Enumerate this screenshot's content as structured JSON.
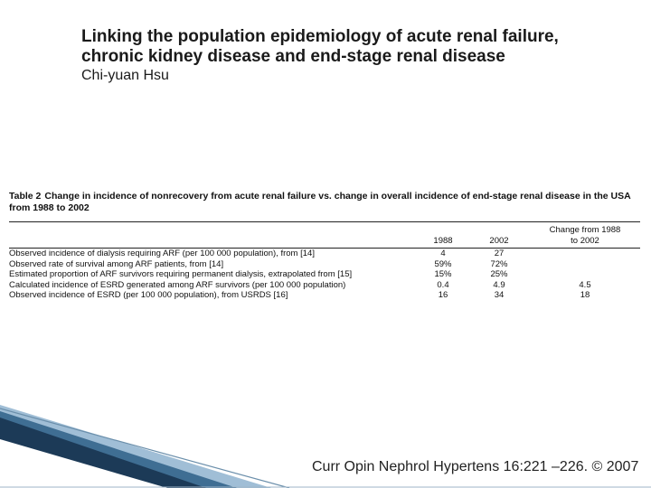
{
  "paper": {
    "title_line1": "Linking the population epidemiology of acute renal failure,",
    "title_line2": "chronic kidney disease and end-stage renal disease",
    "author": "Chi-yuan Hsu"
  },
  "table": {
    "label": "Table 2",
    "caption": "Change in incidence of nonrecovery from acute renal failure vs. change in overall incidence of end-stage renal disease in the USA from 1988 to 2002",
    "headers": {
      "col1": "1988",
      "col2": "2002",
      "col3_line1": "Change from 1988",
      "col3_line2": "to 2002"
    },
    "rows": [
      {
        "label": "Observed incidence of dialysis requiring ARF (per 100 000 population), from [14]",
        "y1988": "4",
        "y2002": "27",
        "change": ""
      },
      {
        "label": "Observed rate of survival among ARF patients, from [14]",
        "y1988": "59%",
        "y2002": "72%",
        "change": ""
      },
      {
        "label": "Estimated proportion of ARF survivors requiring permanent dialysis, extrapolated from [15]",
        "y1988": "15%",
        "y2002": "25%",
        "change": ""
      },
      {
        "label": "Calculated incidence of ESRD generated among ARF survivors (per 100 000 population)",
        "y1988": "0.4",
        "y2002": "4.9",
        "change": "4.5"
      },
      {
        "label": "Observed incidence of ESRD (per 100 000 population), from USRDS [16]",
        "y1988": "16",
        "y2002": "34",
        "change": "18"
      }
    ]
  },
  "citation": "Curr Opin Nephrol Hypertens 16:221 –226. © 2007",
  "colors": {
    "slide_band_dark": "#1c3a57",
    "slide_band_mid": "#3f6e93",
    "slide_band_light": "#8fb3cf"
  }
}
